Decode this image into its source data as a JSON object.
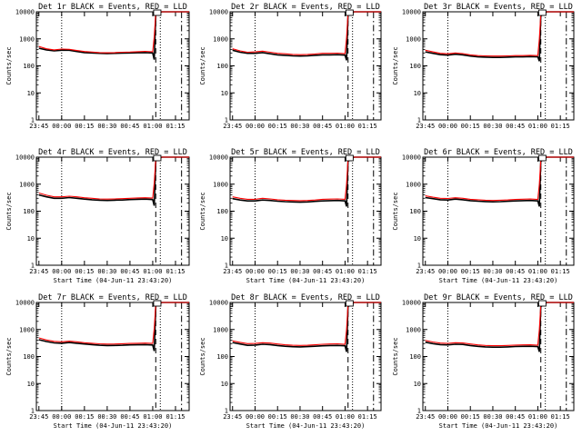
{
  "figure": {
    "ytick_labels": [
      "1",
      "10",
      "100",
      "1000",
      "10000"
    ],
    "xtick_labels": [
      "23:45",
      "00:00",
      "00:15",
      "00:30",
      "00:45",
      "01:00",
      "01:15"
    ],
    "colors": {
      "events": "#000000",
      "lld": "#ff0000",
      "markers": "#000000"
    }
  },
  "chart_data": [
    {
      "type": "line",
      "title": "Det 1r BLACK = Events, RED = LLD",
      "ylabel": "Counts/sec",
      "xlabel": "",
      "yscale": "log",
      "ylim": [
        1,
        10000
      ],
      "xlim": [
        "23:43:20",
        "01:24:00"
      ],
      "grid": false,
      "x": [
        "23:45",
        "23:50",
        "23:55",
        "00:00",
        "00:05",
        "00:10",
        "00:15",
        "00:20",
        "00:25",
        "00:30",
        "00:35",
        "00:40",
        "00:45",
        "00:50",
        "00:55",
        "01:00",
        "01:01",
        "01:02",
        "01:06",
        "01:10",
        "01:15",
        "01:20",
        "01:24"
      ],
      "series": [
        {
          "name": "BLACK = Events",
          "values": [
            450,
            390,
            360,
            380,
            380,
            340,
            310,
            300,
            290,
            285,
            290,
            295,
            300,
            305,
            310,
            300,
            170,
            8000,
            10000,
            10000,
            10000,
            10000,
            10000
          ]
        },
        {
          "name": "RED = LLD",
          "values": [
            520,
            430,
            390,
            420,
            410,
            370,
            340,
            325,
            310,
            305,
            310,
            320,
            325,
            335,
            345,
            330,
            1200,
            9000,
            11000,
            11000,
            11000,
            11000,
            11000
          ]
        }
      ],
      "vlines": [
        {
          "x": "00:00",
          "style": "dotted"
        },
        {
          "x": "01:02",
          "style": "dashed"
        },
        {
          "x": "01:05",
          "style": "dotted"
        },
        {
          "x": "01:19",
          "style": "dash-dot"
        }
      ]
    },
    {
      "type": "line",
      "title": "Det 2r BLACK = Events, RED = LLD",
      "ylabel": "Counts/sec",
      "xlabel": "",
      "yscale": "log",
      "ylim": [
        1,
        10000
      ],
      "xlim": [
        "23:43:20",
        "01:24:00"
      ],
      "grid": false,
      "x": [
        "23:45",
        "23:50",
        "23:55",
        "00:00",
        "00:05",
        "00:10",
        "00:15",
        "00:20",
        "00:25",
        "00:30",
        "00:35",
        "00:40",
        "00:45",
        "00:50",
        "00:55",
        "01:00",
        "01:01",
        "01:02",
        "01:06",
        "01:10",
        "01:15",
        "01:20",
        "01:24"
      ],
      "series": [
        {
          "name": "BLACK = Events",
          "values": [
            380,
            320,
            290,
            290,
            310,
            280,
            255,
            245,
            235,
            230,
            235,
            245,
            255,
            255,
            260,
            250,
            160,
            7500,
            10000,
            10000,
            10000,
            10000,
            10000
          ]
        },
        {
          "name": "RED = LLD",
          "values": [
            430,
            360,
            320,
            330,
            350,
            320,
            290,
            280,
            265,
            260,
            265,
            275,
            290,
            290,
            295,
            285,
            1100,
            8500,
            11000,
            11000,
            11000,
            11000,
            11000
          ]
        }
      ],
      "vlines": [
        {
          "x": "00:00",
          "style": "dotted"
        },
        {
          "x": "01:02",
          "style": "dashed"
        },
        {
          "x": "01:05",
          "style": "dotted"
        },
        {
          "x": "01:19",
          "style": "dash-dot"
        }
      ]
    },
    {
      "type": "line",
      "title": "Det 3r BLACK = Events, RED = LLD",
      "ylabel": "Counts/sec",
      "xlabel": "",
      "yscale": "log",
      "ylim": [
        1,
        10000
      ],
      "xlim": [
        "23:43:20",
        "01:24:00"
      ],
      "grid": false,
      "x": [
        "23:45",
        "23:50",
        "23:55",
        "00:00",
        "00:05",
        "00:10",
        "00:15",
        "00:20",
        "00:25",
        "00:30",
        "00:35",
        "00:40",
        "00:45",
        "00:50",
        "00:55",
        "01:00",
        "01:01",
        "01:02",
        "01:06",
        "01:10",
        "01:15",
        "01:20",
        "01:24"
      ],
      "series": [
        {
          "name": "BLACK = Events",
          "values": [
            330,
            290,
            260,
            250,
            270,
            255,
            230,
            215,
            210,
            205,
            205,
            210,
            215,
            215,
            220,
            215,
            150,
            7000,
            10000,
            10000,
            10000,
            10000,
            10000
          ]
        },
        {
          "name": "RED = LLD",
          "values": [
            380,
            330,
            290,
            280,
            300,
            285,
            255,
            240,
            235,
            230,
            230,
            235,
            240,
            240,
            245,
            240,
            1000,
            8000,
            11000,
            11000,
            11000,
            11000,
            11000
          ]
        }
      ],
      "vlines": [
        {
          "x": "00:00",
          "style": "dotted"
        },
        {
          "x": "01:02",
          "style": "dashed"
        },
        {
          "x": "01:05",
          "style": "dotted"
        },
        {
          "x": "01:19",
          "style": "dash-dot"
        }
      ]
    },
    {
      "type": "line",
      "title": "Det 4r BLACK = Events, RED = LLD",
      "ylabel": "Counts/sec",
      "xlabel": "Start Time (04-Jun-11 23:43:20)",
      "yscale": "log",
      "ylim": [
        1,
        10000
      ],
      "xlim": [
        "23:43:20",
        "01:24:00"
      ],
      "grid": false,
      "x": [
        "23:45",
        "23:50",
        "23:55",
        "00:00",
        "00:05",
        "00:10",
        "00:15",
        "00:20",
        "00:25",
        "00:30",
        "00:35",
        "00:40",
        "00:45",
        "00:50",
        "00:55",
        "01:00",
        "01:01",
        "01:02",
        "01:06",
        "01:10",
        "01:15",
        "01:20",
        "01:24"
      ],
      "series": [
        {
          "name": "BLACK = Events",
          "values": [
            400,
            340,
            300,
            300,
            320,
            300,
            280,
            265,
            255,
            250,
            255,
            260,
            270,
            275,
            280,
            270,
            160,
            7500,
            10000,
            10000,
            10000,
            10000,
            10000
          ]
        },
        {
          "name": "RED = LLD",
          "values": [
            470,
            390,
            340,
            340,
            360,
            340,
            315,
            300,
            285,
            280,
            285,
            290,
            300,
            310,
            315,
            305,
            1100,
            8500,
            11000,
            11000,
            11000,
            11000,
            11000
          ]
        }
      ],
      "vlines": [
        {
          "x": "00:00",
          "style": "dotted"
        },
        {
          "x": "01:02",
          "style": "dashed"
        },
        {
          "x": "01:05",
          "style": "dotted"
        },
        {
          "x": "01:19",
          "style": "dash-dot"
        }
      ]
    },
    {
      "type": "line",
      "title": "Det 5r BLACK = Events, RED = LLD",
      "ylabel": "Counts/sec",
      "xlabel": "Start Time (04-Jun-11 23:43:20)",
      "yscale": "log",
      "ylim": [
        1,
        10000
      ],
      "xlim": [
        "23:43:20",
        "01:24:00"
      ],
      "grid": false,
      "x": [
        "23:45",
        "23:50",
        "23:55",
        "00:00",
        "00:05",
        "00:10",
        "00:15",
        "00:20",
        "00:25",
        "00:30",
        "00:35",
        "00:40",
        "00:45",
        "00:50",
        "00:55",
        "01:00",
        "01:01",
        "01:02",
        "01:06",
        "01:10",
        "01:15",
        "01:20",
        "01:24"
      ],
      "series": [
        {
          "name": "BLACK = Events",
          "values": [
            290,
            260,
            240,
            240,
            260,
            250,
            235,
            225,
            220,
            215,
            220,
            230,
            240,
            245,
            250,
            240,
            150,
            7000,
            10000,
            10000,
            10000,
            10000,
            10000
          ]
        },
        {
          "name": "RED = LLD",
          "values": [
            340,
            300,
            275,
            275,
            300,
            285,
            265,
            255,
            250,
            245,
            250,
            260,
            275,
            280,
            285,
            275,
            1000,
            8000,
            11000,
            11000,
            11000,
            11000,
            11000
          ]
        }
      ],
      "vlines": [
        {
          "x": "00:00",
          "style": "dotted"
        },
        {
          "x": "01:02",
          "style": "dashed"
        },
        {
          "x": "01:05",
          "style": "dotted"
        },
        {
          "x": "01:19",
          "style": "dash-dot"
        }
      ]
    },
    {
      "type": "line",
      "title": "Det 6r BLACK = Events, RED = LLD",
      "ylabel": "Counts/sec",
      "xlabel": "Start Time (04-Jun-11 23:43:20)",
      "yscale": "log",
      "ylim": [
        1,
        10000
      ],
      "xlim": [
        "23:43:20",
        "01:24:00"
      ],
      "grid": false,
      "x": [
        "23:45",
        "23:50",
        "23:55",
        "00:00",
        "00:05",
        "00:10",
        "00:15",
        "00:20",
        "00:25",
        "00:30",
        "00:35",
        "00:40",
        "00:45",
        "00:50",
        "00:55",
        "01:00",
        "01:01",
        "01:02",
        "01:06",
        "01:10",
        "01:15",
        "01:20",
        "01:24"
      ],
      "series": [
        {
          "name": "BLACK = Events",
          "values": [
            320,
            290,
            265,
            260,
            280,
            265,
            245,
            235,
            228,
            222,
            225,
            232,
            240,
            245,
            250,
            240,
            150,
            7000,
            10000,
            10000,
            10000,
            10000,
            10000
          ]
        },
        {
          "name": "RED = LLD",
          "values": [
            370,
            330,
            300,
            295,
            315,
            300,
            275,
            265,
            255,
            250,
            255,
            262,
            272,
            278,
            282,
            272,
            1000,
            8000,
            11000,
            11000,
            11000,
            11000,
            11000
          ]
        }
      ],
      "vlines": [
        {
          "x": "00:00",
          "style": "dotted"
        },
        {
          "x": "01:02",
          "style": "dashed"
        },
        {
          "x": "01:05",
          "style": "dotted"
        },
        {
          "x": "01:19",
          "style": "dash-dot"
        }
      ]
    },
    {
      "type": "line",
      "title": "Det 7r BLACK = Events, RED = LLD",
      "ylabel": "Counts/sec",
      "xlabel": "Start Time (04-Jun-11 23:43:20)",
      "yscale": "log",
      "ylim": [
        1,
        10000
      ],
      "xlim": [
        "23:43:20",
        "01:24:00"
      ],
      "grid": false,
      "x": [
        "23:45",
        "23:50",
        "23:55",
        "00:00",
        "00:05",
        "00:10",
        "00:15",
        "00:20",
        "00:25",
        "00:30",
        "00:35",
        "00:40",
        "00:45",
        "00:50",
        "00:55",
        "01:00",
        "01:01",
        "01:02",
        "01:06",
        "01:10",
        "01:15",
        "01:20",
        "01:24"
      ],
      "series": [
        {
          "name": "BLACK = Events",
          "values": [
            420,
            360,
            320,
            310,
            330,
            310,
            290,
            275,
            262,
            255,
            258,
            262,
            270,
            272,
            275,
            268,
            160,
            7500,
            10000,
            10000,
            10000,
            10000,
            10000
          ]
        },
        {
          "name": "RED = LLD",
          "values": [
            490,
            410,
            365,
            350,
            370,
            350,
            325,
            310,
            295,
            288,
            292,
            298,
            305,
            310,
            315,
            305,
            1100,
            8500,
            11000,
            11000,
            11000,
            11000,
            11000
          ]
        }
      ],
      "vlines": [
        {
          "x": "00:00",
          "style": "dotted"
        },
        {
          "x": "01:02",
          "style": "dashed"
        },
        {
          "x": "01:05",
          "style": "dotted"
        },
        {
          "x": "01:19",
          "style": "dash-dot"
        }
      ]
    },
    {
      "type": "line",
      "title": "Det 8r BLACK = Events, RED = LLD",
      "ylabel": "Counts/sec",
      "xlabel": "Start Time (04-Jun-11 23:43:20)",
      "yscale": "log",
      "ylim": [
        1,
        10000
      ],
      "xlim": [
        "23:43:20",
        "01:24:00"
      ],
      "grid": false,
      "x": [
        "23:45",
        "23:50",
        "23:55",
        "00:00",
        "00:05",
        "00:10",
        "00:15",
        "00:20",
        "00:25",
        "00:30",
        "00:35",
        "00:40",
        "00:45",
        "00:50",
        "00:55",
        "01:00",
        "01:01",
        "01:02",
        "01:06",
        "01:10",
        "01:15",
        "01:20",
        "01:24"
      ],
      "series": [
        {
          "name": "BLACK = Events",
          "values": [
            330,
            290,
            260,
            265,
            285,
            275,
            255,
            240,
            230,
            228,
            232,
            240,
            250,
            255,
            258,
            250,
            150,
            7000,
            10000,
            10000,
            10000,
            10000,
            10000
          ]
        },
        {
          "name": "RED = LLD",
          "values": [
            380,
            335,
            300,
            305,
            325,
            315,
            290,
            272,
            262,
            258,
            262,
            272,
            285,
            290,
            295,
            285,
            1000,
            8000,
            11000,
            11000,
            11000,
            11000,
            11000
          ]
        }
      ],
      "vlines": [
        {
          "x": "00:00",
          "style": "dotted"
        },
        {
          "x": "01:02",
          "style": "dashed"
        },
        {
          "x": "01:05",
          "style": "dotted"
        },
        {
          "x": "01:19",
          "style": "dash-dot"
        }
      ]
    },
    {
      "type": "line",
      "title": "Det 9r BLACK = Events, RED = LLD",
      "ylabel": "Counts/sec",
      "xlabel": "Start Time (04-Jun-11 23:43:20)",
      "yscale": "log",
      "ylim": [
        1,
        10000
      ],
      "xlim": [
        "23:43:20",
        "01:24:00"
      ],
      "grid": false,
      "x": [
        "23:45",
        "23:50",
        "23:55",
        "00:00",
        "00:05",
        "00:10",
        "00:15",
        "00:20",
        "00:25",
        "00:30",
        "00:35",
        "00:40",
        "00:45",
        "00:50",
        "00:55",
        "01:00",
        "01:01",
        "01:02",
        "01:06",
        "01:10",
        "01:15",
        "01:20",
        "01:24"
      ],
      "series": [
        {
          "name": "BLACK = Events",
          "values": [
            340,
            300,
            275,
            270,
            285,
            280,
            255,
            238,
            228,
            222,
            222,
            228,
            235,
            238,
            240,
            232,
            150,
            7000,
            10000,
            10000,
            10000,
            10000,
            10000
          ]
        },
        {
          "name": "RED = LLD",
          "values": [
            395,
            345,
            315,
            308,
            325,
            318,
            290,
            270,
            258,
            252,
            252,
            258,
            265,
            270,
            272,
            262,
            1000,
            8000,
            11000,
            11000,
            11000,
            11000,
            11000
          ]
        }
      ],
      "vlines": [
        {
          "x": "00:00",
          "style": "dotted"
        },
        {
          "x": "01:02",
          "style": "dashed"
        },
        {
          "x": "01:05",
          "style": "dotted"
        },
        {
          "x": "01:19",
          "style": "dash-dot"
        }
      ]
    }
  ]
}
